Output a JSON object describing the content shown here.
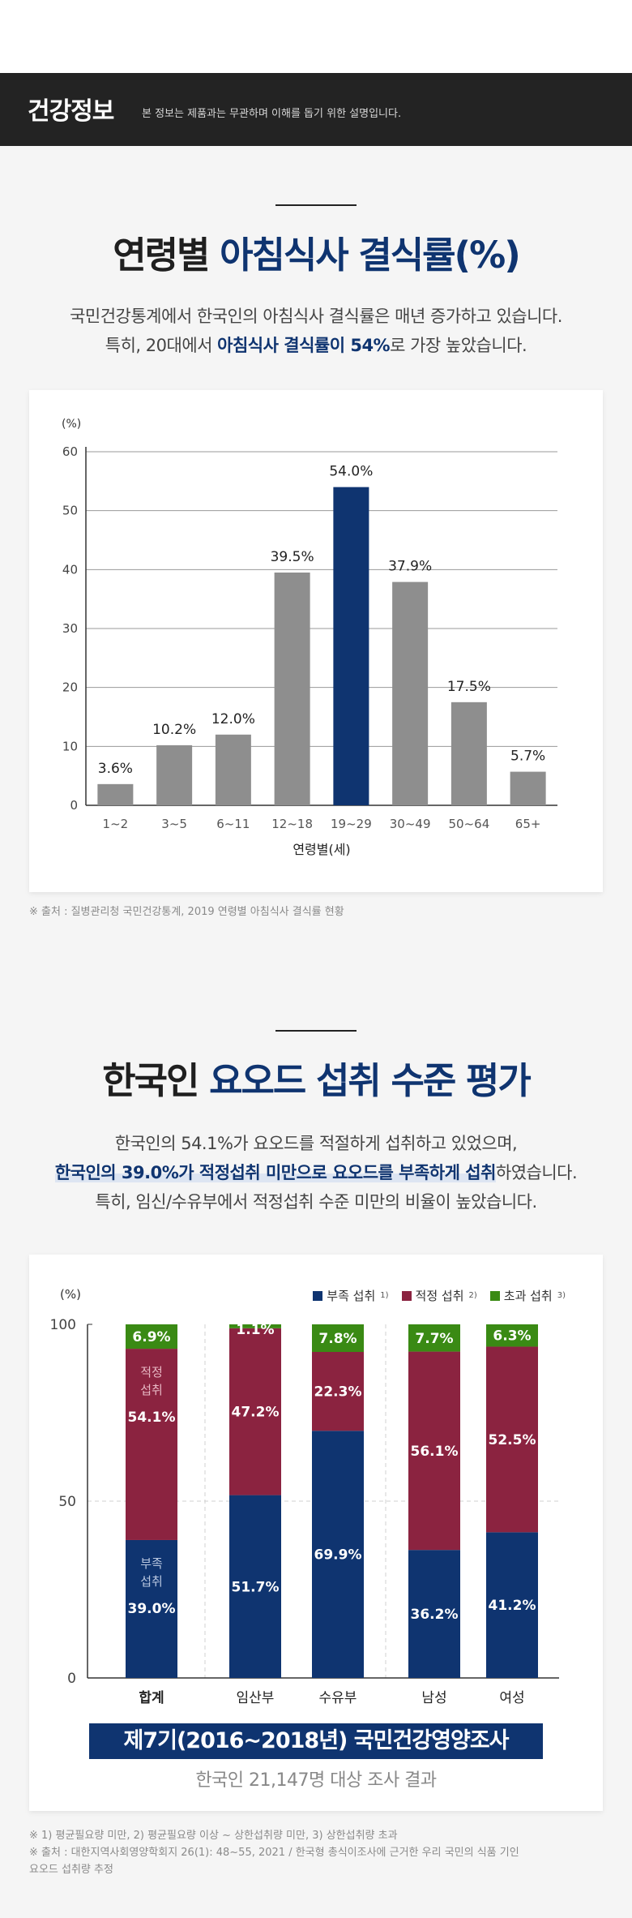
{
  "banner": {
    "title": "건강정보",
    "desc": "본 정보는 제품과는 무관하며 이해를 돕기 위한 설명입니다."
  },
  "section1": {
    "heading_main": "연령별 ",
    "heading_accent": "아침식사 결식률(%)",
    "para_line1": "국민건강통계에서 한국인의 아침식사 결식률은 매년 증가하고 있습니다.",
    "para_line2_pre": "특히, 20대에서 ",
    "para_line2_bold": "아침식사 결식률이 54%",
    "para_line2_post": "로 가장 높았습니다.",
    "source": "※ 출처 : 질병관리청 국민건강통계, 2019 연령별 아침식사 결식률 현황"
  },
  "section2": {
    "heading_main": "한국인 ",
    "heading_accent": "요오드 섭취 수준 평가",
    "para_line1": "한국인의 54.1%가 요오드를 적절하게 섭취하고 있었으며,",
    "para_line2_hl": "한국인의 39.0%가 적정섭취 미만으로 요오드를 부족하게 섭취",
    "para_line2_post": "하였습니다.",
    "para_line3": "특히, 임신/수유부에서 적정섭취 수준 미만의 비율이 높았습니다.",
    "survey_title": "제7기(2016~2018년) 국민건강영양조사",
    "survey_sub": "한국인 21,147명 대상 조사 결과",
    "note1": "※ 1) 평균필요량 미만, 2) 평균필요량 이상 ~ 상한섭취량 미만, 3) 상한섭취량 초과",
    "note2": "※ 출처 : 대한지역사회영양학회지 26(1): 48~55, 2021 / 한국형 총식이조사에 근거한 우리 국민의 식품 기인",
    "note3": "요오드 섭취량 추정",
    "legend": [
      {
        "label": "부족 섭취",
        "sup": "1)",
        "color": "#0f3470"
      },
      {
        "label": "적정 섭취",
        "sup": "2)",
        "color": "#8b2340"
      },
      {
        "label": "초과 섭취",
        "sup": "3)",
        "color": "#3a8a14"
      }
    ]
  },
  "chart_data": [
    {
      "type": "bar",
      "ylabel": "(%)",
      "xlabel": "연령별(세)",
      "ylim": [
        0,
        60
      ],
      "yticks": [
        0,
        10,
        20,
        30,
        40,
        50,
        60
      ],
      "grid": true,
      "categories": [
        "1~2",
        "3~5",
        "6~11",
        "12~18",
        "19~29",
        "30~49",
        "50~64",
        "65+"
      ],
      "values": [
        3.6,
        10.2,
        12.0,
        39.5,
        54.0,
        37.9,
        17.5,
        5.7
      ],
      "value_labels": [
        "3.6%",
        "10.2%",
        "12.0%",
        "39.5%",
        "54.0%",
        "37.9%",
        "17.5%",
        "5.7%"
      ],
      "highlight_index": 4,
      "colors": {
        "default": "#8e8e8e",
        "highlight": "#0f3470"
      }
    },
    {
      "type": "bar",
      "stacked": true,
      "ylabel": "(%)",
      "ylim": [
        0,
        100
      ],
      "yticks": [
        0,
        50,
        100
      ],
      "categories": [
        "합계",
        "임산부",
        "수유부",
        "남성",
        "여성"
      ],
      "inbar_labels": {
        "적정": "적정\n섭취",
        "부족": "부족\n섭취"
      },
      "series": [
        {
          "name": "부족 섭취",
          "values": [
            39.0,
            51.7,
            69.9,
            36.2,
            41.2
          ],
          "labels": [
            "39.0%",
            "51.7%",
            "69.9%",
            "36.2%",
            "41.2%"
          ],
          "color": "#0f3470"
        },
        {
          "name": "적정 섭취",
          "values": [
            54.1,
            47.2,
            22.3,
            56.1,
            52.5
          ],
          "labels": [
            "54.1%",
            "47.2%",
            "22.3%",
            "56.1%",
            "52.5%"
          ],
          "color": "#8b2340"
        },
        {
          "name": "초과 섭취",
          "values": [
            6.9,
            1.1,
            7.8,
            7.7,
            6.3
          ],
          "labels": [
            "6.9%",
            "1.1%",
            "7.8%",
            "7.7%",
            "6.3%"
          ],
          "color": "#3a8a14"
        }
      ]
    }
  ]
}
